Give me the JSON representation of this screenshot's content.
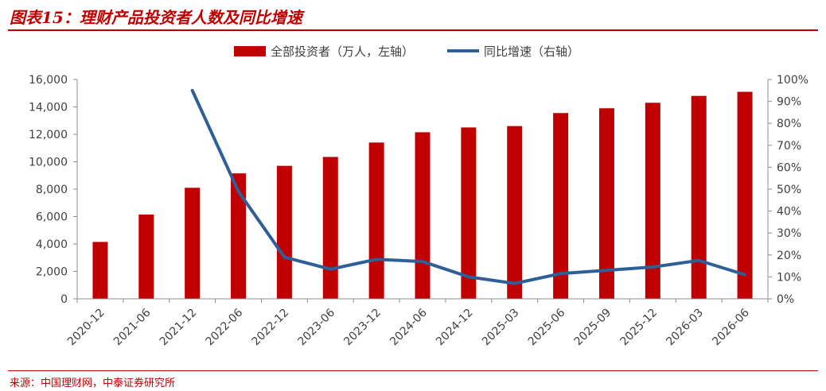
{
  "header": {
    "title": "图表15：理财产品投资者人数及同比增速"
  },
  "footer": {
    "source": "来源：中国理财网，中泰证券研究所"
  },
  "chart_data": {
    "type": "bar+line",
    "categories": [
      "2020-12",
      "2021-06",
      "2021-12",
      "2022-06",
      "2022-12",
      "2023-06",
      "2023-12",
      "2024-06",
      "2024-12",
      "2025-03",
      "2025-06",
      "2025-09",
      "2025-12",
      "2026-03",
      "2026-06"
    ],
    "series": [
      {
        "name": "全部投资者（万人，左轴）",
        "type": "bar",
        "axis": "left",
        "color": "#c00000",
        "values": [
          4150,
          6150,
          8100,
          9150,
          9700,
          10350,
          11400,
          12150,
          12500,
          12600,
          13550,
          13900,
          14300,
          14800,
          15100
        ]
      },
      {
        "name": "同比增速（右轴）",
        "type": "line",
        "axis": "right",
        "color": "#2e6097",
        "values": [
          null,
          null,
          95,
          49,
          19,
          13.5,
          18,
          17,
          10,
          7,
          11.5,
          13,
          14.5,
          17.5,
          11
        ]
      }
    ],
    "left_axis": {
      "min": 0,
      "max": 16000,
      "step": 2000,
      "tick_labels": [
        "0",
        "2,000",
        "4,000",
        "6,000",
        "8,000",
        "10,000",
        "12,000",
        "14,000",
        "16,000"
      ]
    },
    "right_axis": {
      "min": 0,
      "max": 100,
      "step": 10,
      "tick_labels": [
        "0%",
        "10%",
        "20%",
        "30%",
        "40%",
        "50%",
        "60%",
        "70%",
        "80%",
        "90%",
        "100%"
      ]
    },
    "legend": {
      "position": "top"
    },
    "grid": false
  }
}
